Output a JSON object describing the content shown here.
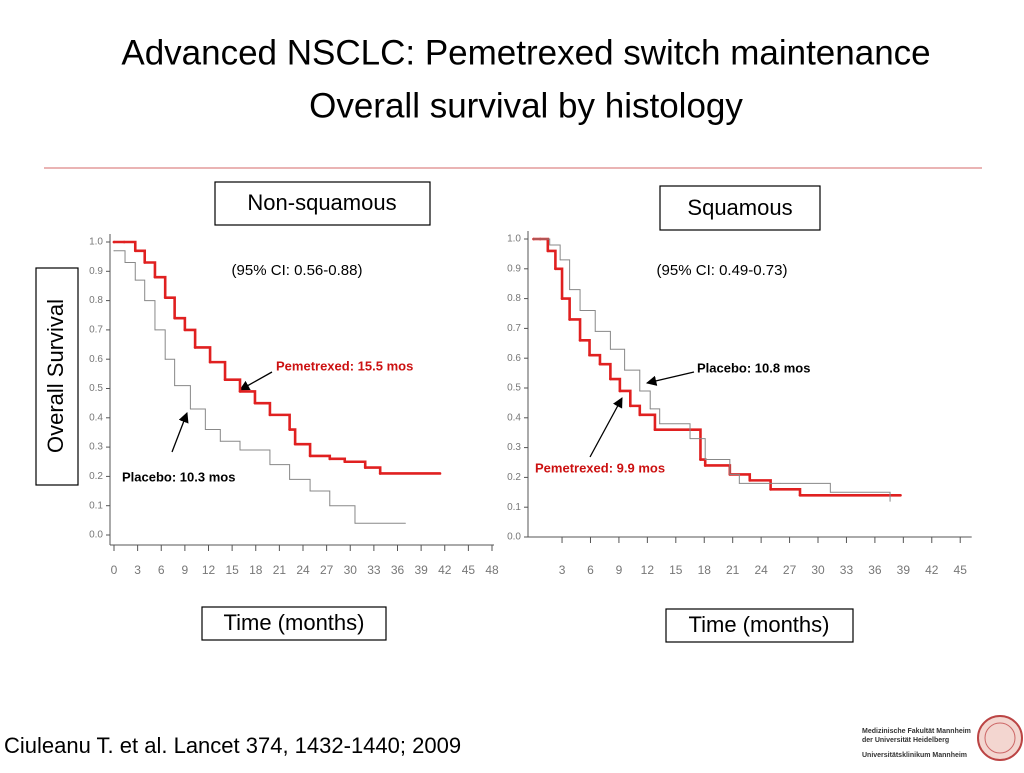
{
  "title": [
    "Advanced NSCLC: Pemetrexed switch maintenance",
    "Overall survival by histology"
  ],
  "ylabel": "Overall Survival",
  "citation": "Ciuleanu T. et al. Lancet 374, 1432-1440; 2009",
  "logo": [
    "Medizinische Fakultät Mannheim",
    "der Universität Heidelberg",
    "Universitätsklinikum Mannheim"
  ],
  "chart_data": [
    {
      "type": "line",
      "step": true,
      "title": "Non-squamous",
      "subtitle": "(95% CI: 0.56-0.88)",
      "xlabel": "Time (months)",
      "xlim": [
        0,
        48
      ],
      "xticks": [
        0,
        3,
        6,
        9,
        12,
        15,
        18,
        21,
        24,
        27,
        30,
        33,
        36,
        39,
        42,
        45,
        48
      ],
      "ylim": [
        0,
        1
      ],
      "yticks": [
        {
          "value": 0,
          "label": "0.0"
        },
        0.1,
        0.2,
        0.3,
        0.4,
        0.5,
        0.6,
        0.7,
        0.8,
        0.9,
        {
          "value": 1,
          "label": "1.0"
        }
      ],
      "grid": false,
      "series": [
        {
          "name": "Pemetrexed",
          "color": "#e02020",
          "x": [
            0,
            1.3,
            2.7,
            3.9,
            5.2,
            6.5,
            7.7,
            9.0,
            10.3,
            12.2,
            14.1,
            16.0,
            17.9,
            19.8,
            22.3,
            23.0,
            24.9,
            27.4,
            29.3,
            31.9,
            33.8,
            41.4
          ],
          "values": [
            1.0,
            1.0,
            0.97,
            0.93,
            0.88,
            0.81,
            0.74,
            0.7,
            0.64,
            0.59,
            0.53,
            0.49,
            0.45,
            0.41,
            0.36,
            0.31,
            0.27,
            0.26,
            0.25,
            0.23,
            0.21,
            0.21
          ]
        },
        {
          "name": "Placebo",
          "color": "#888888",
          "x": [
            0,
            1.4,
            2.7,
            3.9,
            5.2,
            6.5,
            7.7,
            9.7,
            11.6,
            13.5,
            16.0,
            19.8,
            22.3,
            24.9,
            27.4,
            30.6,
            37.0
          ],
          "values": [
            0.97,
            0.93,
            0.87,
            0.8,
            0.7,
            0.6,
            0.51,
            0.43,
            0.36,
            0.32,
            0.29,
            0.24,
            0.19,
            0.15,
            0.1,
            0.04,
            0.04
          ]
        }
      ],
      "annotations": [
        {
          "text": "Pemetrexed: 15.5 mos",
          "color": "#cc1111"
        },
        {
          "text": "Placebo: 10.3 mos",
          "color": "#000000"
        }
      ]
    },
    {
      "type": "line",
      "step": true,
      "title": "Squamous",
      "subtitle": "(95% CI: 0.49-0.73)",
      "xlabel": "Time (months)",
      "xlim": [
        0,
        46
      ],
      "xticks": [
        3,
        6,
        9,
        12,
        15,
        18,
        21,
        24,
        27,
        30,
        33,
        36,
        39,
        42,
        45
      ],
      "ylim": [
        0,
        1
      ],
      "yticks": [
        {
          "value": 0,
          "label": "0.0"
        },
        0.1,
        0.2,
        0.3,
        0.4,
        0.5,
        0.6,
        0.7,
        0.8,
        0.9,
        {
          "value": 1,
          "label": "1.0"
        }
      ],
      "grid": false,
      "series": [
        {
          "name": "Pemetrexed",
          "color": "#e02020",
          "x": [
            0,
            0.7,
            1.5,
            2.3,
            3.0,
            3.8,
            4.9,
            5.9,
            7.0,
            8.1,
            9.1,
            10.2,
            11.2,
            12.8,
            16.3,
            17.6,
            18.1,
            20.7,
            22.8,
            25.0,
            28.1,
            38.7
          ],
          "values": [
            1.0,
            1.0,
            0.96,
            0.9,
            0.8,
            0.73,
            0.66,
            0.61,
            0.58,
            0.53,
            0.49,
            0.44,
            0.41,
            0.36,
            0.36,
            0.26,
            0.24,
            0.21,
            0.19,
            0.16,
            0.14,
            0.14
          ]
        },
        {
          "name": "Placebo",
          "color": "#888888",
          "x": [
            0,
            1.7,
            2.8,
            3.8,
            4.9,
            6.5,
            8.1,
            9.6,
            11.2,
            12.3,
            13.3,
            16.5,
            18.1,
            20.7,
            21.7,
            26.0,
            31.3,
            37.6
          ],
          "values": [
            1.0,
            0.98,
            0.93,
            0.83,
            0.76,
            0.69,
            0.63,
            0.56,
            0.49,
            0.43,
            0.38,
            0.33,
            0.26,
            0.21,
            0.18,
            0.18,
            0.15,
            0.12
          ]
        }
      ],
      "annotations": [
        {
          "text": "Placebo: 10.8 mos",
          "color": "#000000"
        },
        {
          "text": "Pemetrexed: 9.9 mos",
          "color": "#cc1111"
        }
      ]
    }
  ]
}
